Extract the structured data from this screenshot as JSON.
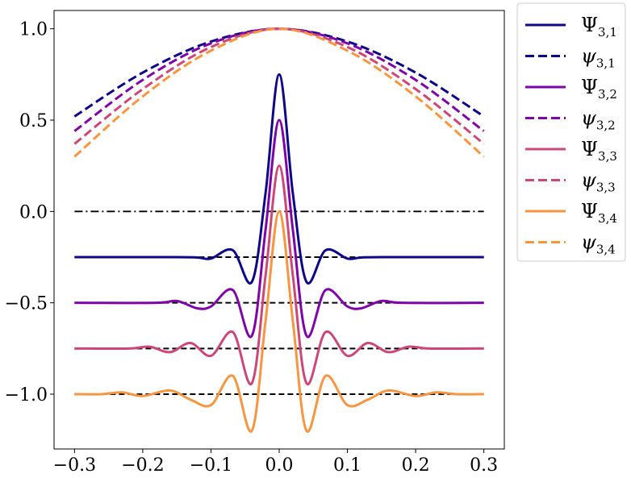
{
  "chart_data": {
    "type": "line",
    "title": "",
    "xlabel": "",
    "ylabel": "",
    "xlim": [
      -0.33,
      0.33
    ],
    "ylim": [
      -1.3,
      1.1
    ],
    "xticks": [
      -0.3,
      -0.2,
      -0.1,
      0.0,
      0.1,
      0.2,
      0.3
    ],
    "xtick_labels": [
      "−0.3",
      "−0.2",
      "−0.1",
      "0.0",
      "0.1",
      "0.2",
      "0.3"
    ],
    "yticks": [
      -1.0,
      -0.5,
      0.0,
      0.5,
      1.0
    ],
    "ytick_labels": [
      "−1.0",
      "−0.5",
      "0.0",
      "0.5",
      "1.0"
    ],
    "grid": false,
    "legend_position": "outside-right-top",
    "x_range": [
      -0.3,
      0.3
    ],
    "reference_line": {
      "y": 0.0,
      "style": "dashdot",
      "color": "#000000"
    },
    "series": [
      {
        "name": "Ψ",
        "subscript": "3,1",
        "style": "solid",
        "color": "#0d0887",
        "offset": -0.25,
        "points": [
          [
            -0.3,
            -0.25
          ],
          [
            -0.15,
            -0.25
          ],
          [
            -0.12,
            -0.252
          ],
          [
            -0.1,
            -0.258
          ],
          [
            -0.068,
            -0.212
          ],
          [
            -0.04,
            -0.385
          ],
          [
            -0.02,
            0.1
          ],
          [
            0.0,
            0.75
          ],
          [
            0.02,
            0.1
          ],
          [
            0.04,
            -0.385
          ],
          [
            0.068,
            -0.212
          ],
          [
            0.1,
            -0.258
          ],
          [
            0.12,
            -0.252
          ],
          [
            0.15,
            -0.25
          ],
          [
            0.3,
            -0.25
          ]
        ]
      },
      {
        "name": "ψ",
        "subscript": "3,1",
        "style": "dashed",
        "color": "#0d0887",
        "points": [
          [
            -0.3,
            0.52
          ],
          [
            -0.2,
            0.76
          ],
          [
            -0.1,
            0.93
          ],
          [
            0.0,
            1.0
          ],
          [
            0.1,
            0.93
          ],
          [
            0.2,
            0.76
          ],
          [
            0.3,
            0.52
          ]
        ]
      },
      {
        "name": "Ψ",
        "subscript": "3,2",
        "style": "solid",
        "color": "#7e03a8",
        "offset": -0.5,
        "points": [
          [
            -0.3,
            -0.5
          ],
          [
            -0.18,
            -0.5
          ],
          [
            -0.15,
            -0.49
          ],
          [
            -0.12,
            -0.53
          ],
          [
            -0.1,
            -0.52
          ],
          [
            -0.068,
            -0.43
          ],
          [
            -0.04,
            -0.68
          ],
          [
            -0.02,
            -0.1
          ],
          [
            0.0,
            0.5
          ],
          [
            0.02,
            -0.1
          ],
          [
            0.04,
            -0.68
          ],
          [
            0.068,
            -0.43
          ],
          [
            0.1,
            -0.52
          ],
          [
            0.12,
            -0.53
          ],
          [
            0.15,
            -0.49
          ],
          [
            0.18,
            -0.5
          ],
          [
            0.3,
            -0.5
          ]
        ]
      },
      {
        "name": "ψ",
        "subscript": "3,2",
        "style": "dashed",
        "color": "#7e03a8",
        "points": [
          [
            -0.3,
            0.44
          ],
          [
            -0.2,
            0.72
          ],
          [
            -0.1,
            0.92
          ],
          [
            0.0,
            1.0
          ],
          [
            0.1,
            0.92
          ],
          [
            0.2,
            0.72
          ],
          [
            0.3,
            0.44
          ]
        ]
      },
      {
        "name": "Ψ",
        "subscript": "3,3",
        "style": "solid",
        "color": "#cc4778",
        "offset": -0.75,
        "points": [
          [
            -0.3,
            -0.75
          ],
          [
            -0.22,
            -0.75
          ],
          [
            -0.19,
            -0.74
          ],
          [
            -0.16,
            -0.77
          ],
          [
            -0.13,
            -0.72
          ],
          [
            -0.1,
            -0.79
          ],
          [
            -0.068,
            -0.66
          ],
          [
            -0.04,
            -0.94
          ],
          [
            -0.02,
            -0.35
          ],
          [
            0.0,
            0.25
          ],
          [
            0.02,
            -0.35
          ],
          [
            0.04,
            -0.94
          ],
          [
            0.068,
            -0.66
          ],
          [
            0.1,
            -0.79
          ],
          [
            0.13,
            -0.72
          ],
          [
            0.16,
            -0.77
          ],
          [
            0.19,
            -0.74
          ],
          [
            0.22,
            -0.75
          ],
          [
            0.3,
            -0.75
          ]
        ]
      },
      {
        "name": "ψ",
        "subscript": "3,3",
        "style": "dashed",
        "color": "#cc4778",
        "points": [
          [
            -0.3,
            0.37
          ],
          [
            -0.2,
            0.67
          ],
          [
            -0.1,
            0.9
          ],
          [
            0.0,
            1.0
          ],
          [
            0.1,
            0.9
          ],
          [
            0.2,
            0.67
          ],
          [
            0.3,
            0.37
          ]
        ]
      },
      {
        "name": "Ψ",
        "subscript": "3,4",
        "style": "solid",
        "color": "#f89540",
        "offset": -1.0,
        "points": [
          [
            -0.3,
            -1.0
          ],
          [
            -0.26,
            -1.0
          ],
          [
            -0.23,
            -0.99
          ],
          [
            -0.2,
            -1.01
          ],
          [
            -0.16,
            -0.98
          ],
          [
            -0.13,
            -1.03
          ],
          [
            -0.1,
            -1.06
          ],
          [
            -0.068,
            -0.9
          ],
          [
            -0.04,
            -1.2
          ],
          [
            -0.02,
            -0.6
          ],
          [
            0.0,
            0.0
          ],
          [
            0.02,
            -0.6
          ],
          [
            0.04,
            -1.2
          ],
          [
            0.068,
            -0.9
          ],
          [
            0.1,
            -1.06
          ],
          [
            0.13,
            -1.03
          ],
          [
            0.16,
            -0.98
          ],
          [
            0.2,
            -1.01
          ],
          [
            0.23,
            -0.99
          ],
          [
            0.26,
            -1.0
          ],
          [
            0.3,
            -1.0
          ]
        ]
      },
      {
        "name": "ψ",
        "subscript": "3,4",
        "style": "dashed",
        "color": "#f89540",
        "points": [
          [
            -0.3,
            0.3
          ],
          [
            -0.2,
            0.63
          ],
          [
            -0.1,
            0.88
          ],
          [
            0.0,
            1.0
          ],
          [
            0.1,
            0.88
          ],
          [
            0.2,
            0.63
          ],
          [
            0.3,
            0.3
          ]
        ]
      }
    ]
  }
}
